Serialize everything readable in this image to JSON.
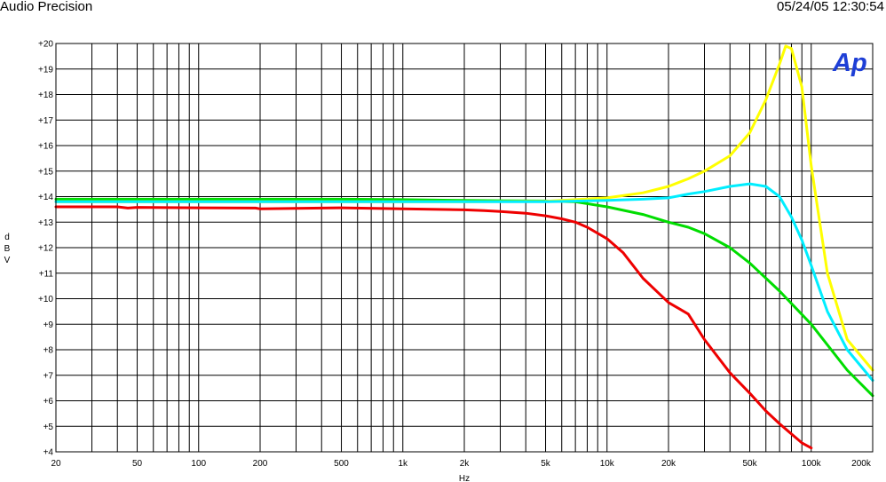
{
  "header": {
    "brand": "Audio Precision",
    "timestamp": "05/24/05 12:30:54"
  },
  "logo": {
    "text": "Ap",
    "color": "#1e3fd6"
  },
  "chart_data": {
    "type": "line",
    "xlabel": "Hz",
    "ylabel": "dBV",
    "x_scale": "log",
    "xlim": [
      20,
      200000
    ],
    "ylim": [
      4,
      20
    ],
    "grid": true,
    "x_ticks": [
      {
        "value": 20,
        "label": "20"
      },
      {
        "value": 50,
        "label": "50"
      },
      {
        "value": 100,
        "label": "100"
      },
      {
        "value": 200,
        "label": "200"
      },
      {
        "value": 500,
        "label": "500"
      },
      {
        "value": 1000,
        "label": "1k"
      },
      {
        "value": 2000,
        "label": "2k"
      },
      {
        "value": 5000,
        "label": "5k"
      },
      {
        "value": 10000,
        "label": "10k"
      },
      {
        "value": 20000,
        "label": "20k"
      },
      {
        "value": 50000,
        "label": "50k"
      },
      {
        "value": 100000,
        "label": "100k"
      },
      {
        "value": 200000,
        "label": "200k"
      }
    ],
    "y_ticks": [
      {
        "value": 4,
        "label": "+4"
      },
      {
        "value": 5,
        "label": "+5"
      },
      {
        "value": 6,
        "label": "+6"
      },
      {
        "value": 7,
        "label": "+7"
      },
      {
        "value": 8,
        "label": "+8"
      },
      {
        "value": 9,
        "label": "+9"
      },
      {
        "value": 10,
        "label": "+10"
      },
      {
        "value": 11,
        "label": "+11"
      },
      {
        "value": 12,
        "label": "+12"
      },
      {
        "value": 13,
        "label": "+13"
      },
      {
        "value": 14,
        "label": "+14"
      },
      {
        "value": 15,
        "label": "+15"
      },
      {
        "value": 16,
        "label": "+16"
      },
      {
        "value": 17,
        "label": "+17"
      },
      {
        "value": 18,
        "label": "+18"
      },
      {
        "value": 19,
        "label": "+19"
      },
      {
        "value": 20,
        "label": "+20"
      }
    ],
    "series": [
      {
        "color": "#00dd00",
        "x": [
          20,
          100,
          500,
          1000,
          2000,
          3000,
          5000,
          7000,
          10000,
          15000,
          20000,
          25000,
          30000,
          40000,
          50000,
          70000,
          100000,
          150000,
          200000
        ],
        "y": [
          13.9,
          13.9,
          13.9,
          13.88,
          13.85,
          13.84,
          13.83,
          13.8,
          13.6,
          13.3,
          13.0,
          12.8,
          12.55,
          12.0,
          11.4,
          10.3,
          9.0,
          7.2,
          6.2
        ]
      },
      {
        "color": "#ffff00",
        "x": [
          20,
          100,
          500,
          1000,
          2000,
          5000,
          10000,
          15000,
          20000,
          25000,
          30000,
          40000,
          50000,
          60000,
          70000,
          75000,
          80000,
          90000,
          100000,
          120000,
          150000,
          200000
        ],
        "y": [
          13.8,
          13.8,
          13.8,
          13.8,
          13.8,
          13.82,
          13.95,
          14.15,
          14.4,
          14.7,
          15.0,
          15.6,
          16.5,
          17.8,
          19.2,
          19.9,
          19.8,
          18.3,
          15.2,
          11.0,
          8.4,
          7.2
        ]
      },
      {
        "color": "#00eeff",
        "x": [
          20,
          100,
          500,
          1000,
          2000,
          5000,
          10000,
          15000,
          20000,
          25000,
          30000,
          40000,
          50000,
          60000,
          70000,
          80000,
          90000,
          100000,
          120000,
          150000,
          200000
        ],
        "y": [
          13.8,
          13.8,
          13.8,
          13.8,
          13.8,
          13.8,
          13.85,
          13.9,
          13.95,
          14.1,
          14.2,
          14.4,
          14.5,
          14.4,
          14.0,
          13.2,
          12.3,
          11.3,
          9.5,
          8.0,
          6.8
        ]
      },
      {
        "color": "#ee0000",
        "x": [
          20,
          40,
          45,
          50,
          100,
          190,
          200,
          500,
          1000,
          2000,
          2500,
          3000,
          4000,
          5000,
          6000,
          7000,
          8000,
          10000,
          12000,
          15000,
          18000,
          20000,
          25000,
          30000,
          40000,
          50000,
          60000,
          70000,
          80000,
          90000,
          100000
        ],
        "y": [
          13.6,
          13.6,
          13.55,
          13.58,
          13.56,
          13.55,
          13.52,
          13.56,
          13.52,
          13.48,
          13.45,
          13.42,
          13.35,
          13.25,
          13.13,
          13.0,
          12.8,
          12.35,
          11.8,
          10.8,
          10.2,
          9.85,
          9.4,
          8.4,
          7.1,
          6.3,
          5.6,
          5.1,
          4.7,
          4.35,
          4.15
        ]
      }
    ]
  }
}
